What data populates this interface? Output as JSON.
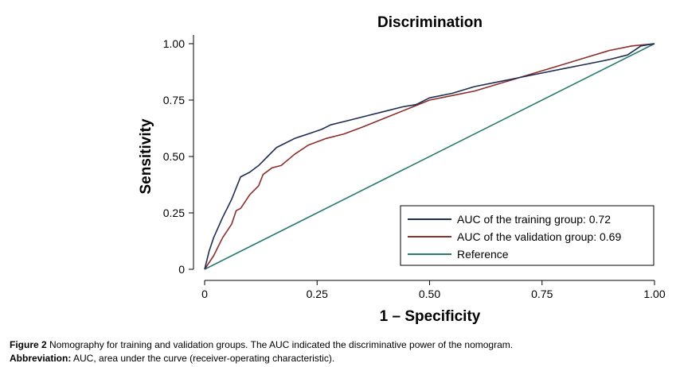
{
  "chart_data": {
    "type": "line",
    "title": "Discrimination",
    "xlabel": "1 – Specificity",
    "ylabel": "Sensitivity",
    "xlim": [
      0,
      1
    ],
    "ylim": [
      0,
      1
    ],
    "x_ticks": [
      {
        "value": 0,
        "label": "0"
      },
      {
        "value": 0.25,
        "label": "0.25"
      },
      {
        "value": 0.5,
        "label": "0.50"
      },
      {
        "value": 0.75,
        "label": "0.75"
      },
      {
        "value": 1,
        "label": "1.00"
      }
    ],
    "y_ticks": [
      {
        "value": 0,
        "label": "0"
      },
      {
        "value": 0.25,
        "label": "0.25"
      },
      {
        "value": 0.5,
        "label": "0.50"
      },
      {
        "value": 0.75,
        "label": "0.75"
      },
      {
        "value": 1,
        "label": "1.00"
      }
    ],
    "legend_position": "bottom-right",
    "series": [
      {
        "name": "AUC of the training group: 0.72",
        "color": "#1f2d52",
        "x": [
          0,
          0.01,
          0.02,
          0.04,
          0.06,
          0.08,
          0.1,
          0.12,
          0.14,
          0.16,
          0.18,
          0.2,
          0.23,
          0.26,
          0.28,
          0.32,
          0.36,
          0.4,
          0.44,
          0.47,
          0.5,
          0.55,
          0.6,
          0.65,
          0.7,
          0.75,
          0.8,
          0.85,
          0.9,
          0.94,
          0.97,
          1.0
        ],
        "y": [
          0,
          0.08,
          0.14,
          0.23,
          0.31,
          0.41,
          0.43,
          0.46,
          0.5,
          0.54,
          0.56,
          0.58,
          0.6,
          0.62,
          0.64,
          0.66,
          0.68,
          0.7,
          0.72,
          0.73,
          0.76,
          0.78,
          0.81,
          0.83,
          0.85,
          0.87,
          0.89,
          0.91,
          0.93,
          0.95,
          0.99,
          1.0
        ]
      },
      {
        "name": "AUC of the validation group: 0.69",
        "color": "#8a2f2c",
        "x": [
          0,
          0.02,
          0.04,
          0.06,
          0.07,
          0.08,
          0.09,
          0.1,
          0.12,
          0.13,
          0.15,
          0.17,
          0.2,
          0.23,
          0.27,
          0.31,
          0.35,
          0.4,
          0.45,
          0.5,
          0.55,
          0.6,
          0.65,
          0.7,
          0.75,
          0.8,
          0.85,
          0.9,
          0.95,
          1.0
        ],
        "y": [
          0,
          0.06,
          0.14,
          0.2,
          0.26,
          0.27,
          0.3,
          0.33,
          0.37,
          0.42,
          0.45,
          0.46,
          0.51,
          0.55,
          0.58,
          0.6,
          0.63,
          0.67,
          0.71,
          0.75,
          0.77,
          0.79,
          0.82,
          0.85,
          0.88,
          0.91,
          0.94,
          0.97,
          0.99,
          1.0
        ]
      },
      {
        "name": "Reference",
        "color": "#2a7a6f",
        "x": [
          0,
          1
        ],
        "y": [
          0,
          1
        ]
      }
    ]
  },
  "caption": {
    "figure_label": "Figure 2",
    "figure_text": " Nomography for training and validation groups. The AUC indicated the discriminative power of the nomogram.",
    "abbrev_label": "Abbreviation:",
    "abbrev_text": " AUC, area under the curve (receiver-operating characteristic)."
  }
}
